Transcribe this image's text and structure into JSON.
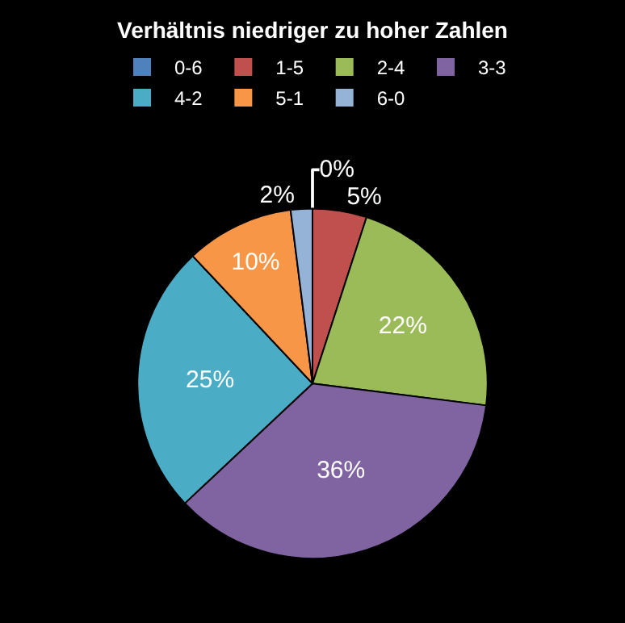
{
  "chart_data": {
    "type": "pie",
    "title": "Verhältnis niedriger zu hoher Zahlen",
    "categories": [
      "0-6",
      "1-5",
      "2-4",
      "3-3",
      "4-2",
      "5-1",
      "6-0"
    ],
    "values": [
      0,
      5,
      22,
      36,
      25,
      10,
      2
    ],
    "value_labels": [
      "0%",
      "5%",
      "22%",
      "36%",
      "25%",
      "10%",
      "2%"
    ],
    "colors": [
      "#4f81bd",
      "#c0504d",
      "#9bbb59",
      "#8064a2",
      "#4bacc6",
      "#f79646",
      "#95b3d7"
    ],
    "legend": "top"
  }
}
